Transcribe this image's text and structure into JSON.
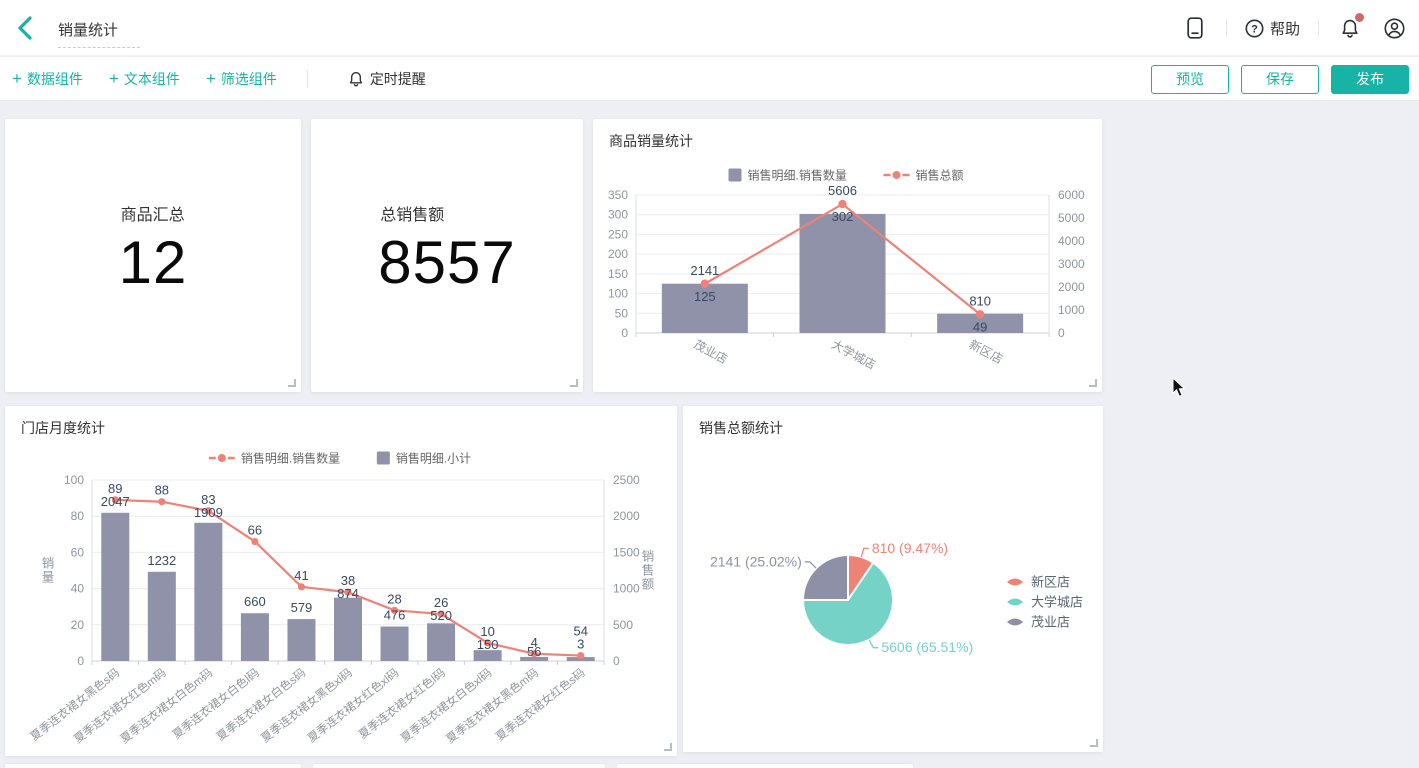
{
  "header": {
    "title": "销量统计",
    "help_label": "帮助"
  },
  "toolbar": {
    "add_data_label": "数据组件",
    "add_text_label": "文本组件",
    "add_filter_label": "筛选组件",
    "reminder_label": "定时提醒",
    "preview_label": "预览",
    "save_label": "保存",
    "publish_label": "发布"
  },
  "kpi_cards": [
    {
      "title": "商品汇总",
      "value": "12"
    },
    {
      "title": "总销售额",
      "value": "8557"
    }
  ],
  "colors": {
    "accent": "#17b3a6",
    "bar": "#8f92a8",
    "line": "#ef8276",
    "pie_teal": "#74d3c6",
    "pie_purple": "#8d90a7",
    "pie_salmon": "#ef8276",
    "data_label": "#3a4961",
    "axis_text": "#8f959e",
    "grid": "#e9ebef",
    "axis_line": "#ccd0d6",
    "legend_text": "#666666"
  },
  "chart_data": [
    {
      "id": "product_sales",
      "type": "bar-line",
      "title": "商品销量统计",
      "categories": [
        "茂业店",
        "大学城店",
        "新区店"
      ],
      "series": [
        {
          "name": "销售明细.销售数量",
          "type": "bar",
          "axis": "left",
          "color": "#8f92a8",
          "values": [
            125,
            302,
            49
          ]
        },
        {
          "name": "销售总额",
          "type": "line",
          "axis": "right",
          "color": "#ef8276",
          "values": [
            2141,
            5606,
            810
          ]
        }
      ],
      "left_axis": {
        "min": 0,
        "max": 350,
        "step": 50
      },
      "right_axis": {
        "min": 0,
        "max": 6000,
        "step": 1000
      },
      "legend_position": "top",
      "grid": true,
      "label_mode": "around-dot",
      "x_label_rotate": 28
    },
    {
      "id": "store_monthly",
      "type": "bar-line",
      "title": "门店月度统计",
      "categories": [
        "夏季连衣裙女黑色s码",
        "夏季连衣裙女红色m码",
        "夏季连衣裙女白色m码",
        "夏季连衣裙女白色l码",
        "夏季连衣裙女白色s码",
        "夏季连衣裙女黑色xl码",
        "夏季连衣裙女红色xl码",
        "夏季连衣裙女红色l码",
        "夏季连衣裙女白色xl码",
        "夏季连衣裙女黑色m码",
        "夏季连衣裙女红色s码"
      ],
      "series": [
        {
          "name": "销售明细.销售数量",
          "type": "line",
          "axis": "left",
          "color": "#ef8276",
          "values": [
            89,
            88,
            83,
            66,
            41,
            38,
            28,
            26,
            10,
            4,
            3
          ]
        },
        {
          "name": "销售明细.小计",
          "type": "bar",
          "axis": "right",
          "color": "#8f92a8",
          "values": [
            2047,
            1232,
            1909,
            660,
            579,
            874,
            476,
            520,
            150,
            56,
            54
          ]
        }
      ],
      "left_axis": {
        "min": 0,
        "max": 100,
        "step": 20,
        "title": "销量"
      },
      "right_axis": {
        "min": 0,
        "max": 2500,
        "step": 500,
        "title": "销售额"
      },
      "legend_position": "top",
      "grid": true,
      "label_mode": "stacked",
      "x_label_rotate": -38,
      "label_swap_columns": [
        10
      ]
    },
    {
      "id": "sales_total",
      "type": "pie",
      "title": "销售总额统计",
      "slices": [
        {
          "name": "新区店",
          "value": 810,
          "pct": "9.47%",
          "color": "#ef8276"
        },
        {
          "name": "大学城店",
          "value": 5606,
          "pct": "65.51%",
          "color": "#74d3c6"
        },
        {
          "name": "茂业店",
          "value": 2141,
          "pct": "25.02%",
          "color": "#8d90a7"
        }
      ],
      "legend_position": "right",
      "start_angle_deg": 0,
      "clockwise": true
    }
  ]
}
